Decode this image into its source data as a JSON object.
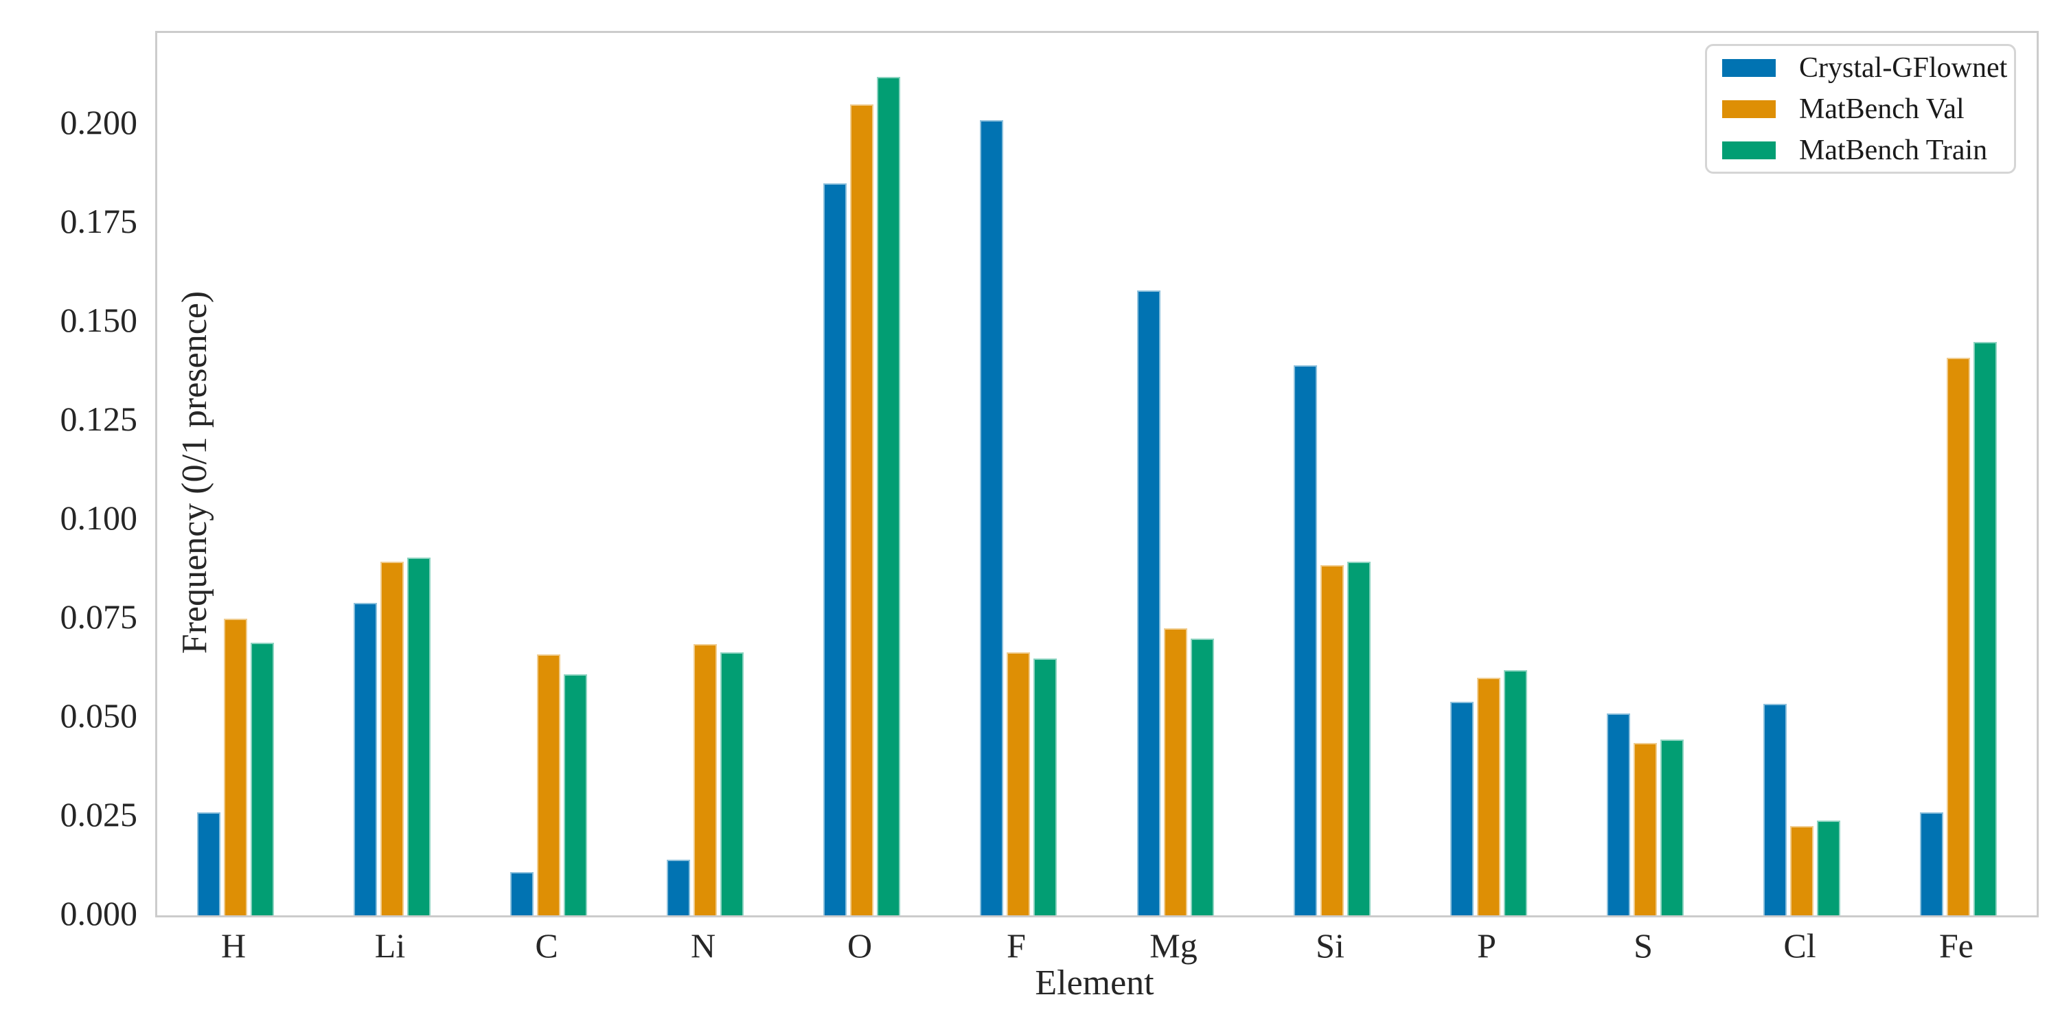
{
  "axes": {
    "xlabel": "Element",
    "ylabel": "Frequency (0/1 presence)"
  },
  "legend": {
    "items": [
      {
        "label": "Crystal-GFlownet",
        "color": "#0173b2"
      },
      {
        "label": "MatBench Val",
        "color": "#de8f05"
      },
      {
        "label": "MatBench Train",
        "color": "#029e73"
      }
    ]
  },
  "colors": {
    "blue": "#0173b2",
    "orange": "#de8f05",
    "green": "#029e73",
    "spine": "#cccccc",
    "text": "#262626"
  },
  "chart_data": {
    "type": "bar",
    "title": "",
    "xlabel": "Element",
    "ylabel": "Frequency (0/1 presence)",
    "categories": [
      "H",
      "Li",
      "C",
      "N",
      "O",
      "F",
      "Mg",
      "Si",
      "P",
      "S",
      "Cl",
      "Fe"
    ],
    "series": [
      {
        "name": "Crystal-GFlownet",
        "color": "#0173b2",
        "values": [
          0.026,
          0.079,
          0.011,
          0.014,
          0.185,
          0.201,
          0.158,
          0.139,
          0.054,
          0.051,
          0.0535,
          0.026
        ]
      },
      {
        "name": "MatBench Val",
        "color": "#de8f05",
        "values": [
          0.075,
          0.0895,
          0.066,
          0.0685,
          0.205,
          0.0665,
          0.0725,
          0.0885,
          0.06,
          0.0435,
          0.0225,
          0.141
        ]
      },
      {
        "name": "MatBench Train",
        "color": "#029e73",
        "values": [
          0.069,
          0.0905,
          0.061,
          0.0665,
          0.212,
          0.065,
          0.07,
          0.0895,
          0.062,
          0.0445,
          0.024,
          0.145
        ]
      }
    ],
    "ylim": [
      0,
      0.2231
    ],
    "yticks": [
      0.0,
      0.025,
      0.05,
      0.075,
      0.1,
      0.125,
      0.15,
      0.175,
      0.2
    ],
    "ytick_labels": [
      "0.000",
      "0.025",
      "0.050",
      "0.075",
      "0.100",
      "0.125",
      "0.150",
      "0.175",
      "0.200"
    ],
    "grid": false,
    "legend_position": "upper right"
  }
}
